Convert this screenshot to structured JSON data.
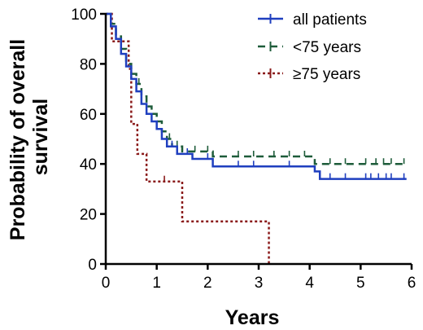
{
  "chart_data": {
    "type": "line",
    "step": true,
    "xlabel": "Years",
    "ylabel": "Probability of overall survival",
    "ylabel_lines": [
      "Probability of overall",
      "survival"
    ],
    "xlim": [
      0,
      6
    ],
    "ylim": [
      0,
      100
    ],
    "xticks": [
      0,
      1,
      2,
      3,
      4,
      5,
      6
    ],
    "yticks": [
      0,
      20,
      40,
      60,
      80,
      100
    ],
    "grid": false,
    "legend_position": "top-right",
    "series": [
      {
        "name": "all patients",
        "color": "#1f3fbf",
        "dash": "solid",
        "points": [
          [
            0,
            100
          ],
          [
            0.1,
            95
          ],
          [
            0.2,
            90
          ],
          [
            0.3,
            84
          ],
          [
            0.4,
            79
          ],
          [
            0.5,
            74
          ],
          [
            0.6,
            69
          ],
          [
            0.7,
            64
          ],
          [
            0.8,
            60
          ],
          [
            0.9,
            57
          ],
          [
            1.0,
            54
          ],
          [
            1.1,
            50
          ],
          [
            1.2,
            47
          ],
          [
            1.4,
            44
          ],
          [
            1.7,
            42
          ],
          [
            2.1,
            39
          ],
          [
            4.1,
            37
          ],
          [
            4.2,
            34
          ],
          [
            5.9,
            34
          ]
        ],
        "censor": [
          1.3,
          1.6,
          2.0,
          2.6,
          2.9,
          3.6,
          4.4,
          4.7,
          5.1,
          5.2,
          5.35,
          5.5,
          5.6,
          5.85
        ]
      },
      {
        "name": "<75 years",
        "color": "#1e5c3a",
        "dash": "dashed",
        "points": [
          [
            0,
            100
          ],
          [
            0.1,
            96
          ],
          [
            0.2,
            91
          ],
          [
            0.3,
            86
          ],
          [
            0.4,
            80
          ],
          [
            0.5,
            76
          ],
          [
            0.6,
            72
          ],
          [
            0.7,
            67
          ],
          [
            0.8,
            63
          ],
          [
            0.9,
            60
          ],
          [
            1.0,
            57
          ],
          [
            1.1,
            53
          ],
          [
            1.2,
            50
          ],
          [
            1.3,
            47
          ],
          [
            1.5,
            45
          ],
          [
            2.1,
            43
          ],
          [
            4.1,
            40
          ],
          [
            5.9,
            40
          ]
        ],
        "censor": [
          0.65,
          1.25,
          1.4,
          1.75,
          2.0,
          2.6,
          2.9,
          3.3,
          3.6,
          3.9,
          4.4,
          4.7,
          5.1,
          5.3,
          5.45,
          5.6,
          5.85
        ]
      },
      {
        "name": "≥75 years",
        "color": "#8a1a1a",
        "dash": "dotted",
        "points": [
          [
            0,
            100
          ],
          [
            0.12,
            89
          ],
          [
            0.45,
            78
          ],
          [
            0.5,
            56
          ],
          [
            0.62,
            44
          ],
          [
            0.8,
            33
          ],
          [
            1.5,
            17
          ],
          [
            3.2,
            17
          ],
          [
            3.2,
            0
          ]
        ],
        "censor": [
          1.15
        ]
      }
    ]
  }
}
